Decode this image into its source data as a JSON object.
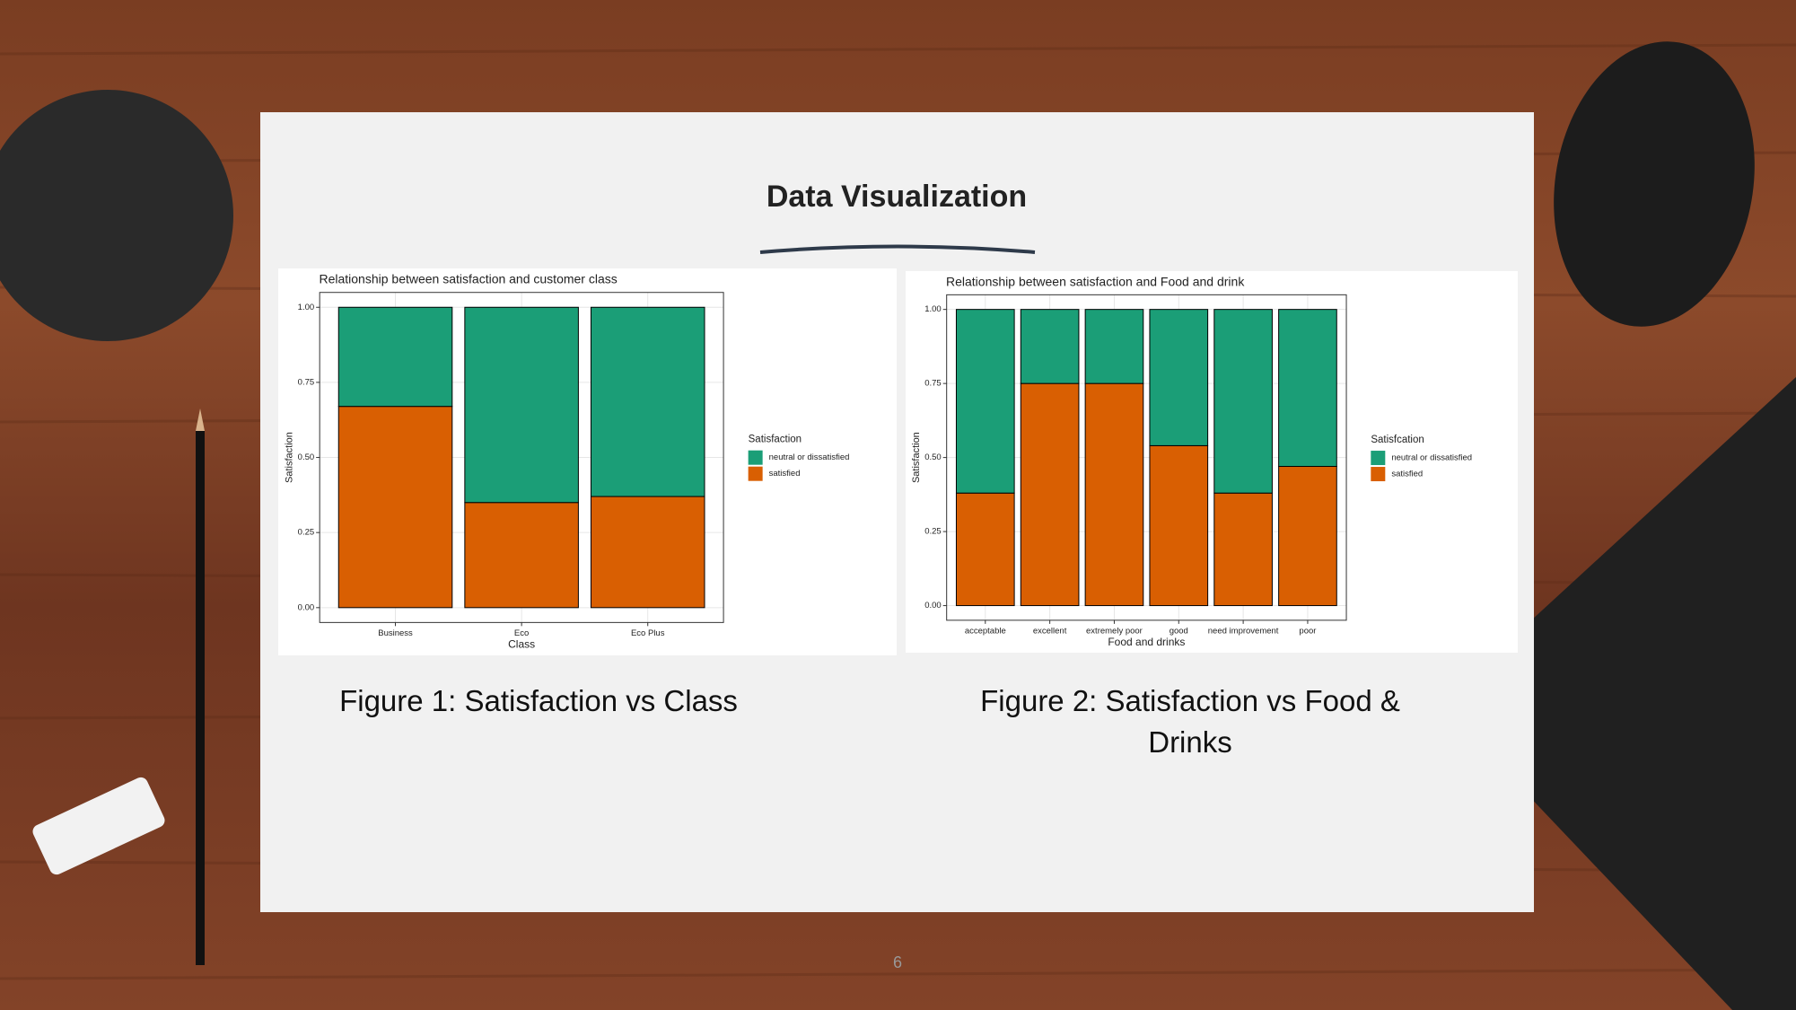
{
  "slide": {
    "title": "Data Visualization",
    "captions": [
      "Figure 1: Satisfaction vs Class",
      "Figure 2: Satisfaction vs Food & Drinks"
    ],
    "page_number": "6"
  },
  "chart_data": [
    {
      "type": "bar",
      "stacked": true,
      "title": "Relationship between satisfaction and customer class",
      "categories": [
        "Business",
        "Eco",
        "Eco Plus"
      ],
      "series": [
        {
          "name": "neutral or dissatisfied",
          "color": "#1b9e77",
          "values": [
            0.33,
            0.65,
            0.63
          ]
        },
        {
          "name": "satisfied",
          "color": "#d95f02",
          "values": [
            0.67,
            0.35,
            0.37
          ]
        }
      ],
      "x_label": "Class",
      "y_label": "Satisfaction",
      "legend_title": "Satisfaction",
      "ylim": [
        0,
        1
      ],
      "yticks": [
        {
          "value": 0,
          "label": "0.00"
        },
        {
          "value": 0.25,
          "label": "0.25"
        },
        {
          "value": 0.5,
          "label": "0.50"
        },
        {
          "value": 0.75,
          "label": "0.75"
        },
        {
          "value": 1,
          "label": "1.00"
        }
      ],
      "grid": true,
      "legend": "right"
    },
    {
      "type": "bar",
      "stacked": true,
      "title": "Relationship between satisfaction and Food and drink",
      "categories": [
        "acceptable",
        "excellent",
        "extremely poor",
        "good",
        "need improvement",
        "poor"
      ],
      "series": [
        {
          "name": "neutral or dissatisfied",
          "color": "#1b9e77",
          "values": [
            0.62,
            0.25,
            0.25,
            0.46,
            0.62,
            0.53
          ]
        },
        {
          "name": "satisfied",
          "color": "#d95f02",
          "values": [
            0.38,
            0.75,
            0.75,
            0.54,
            0.38,
            0.47
          ]
        }
      ],
      "x_label": "Food and drinks",
      "y_label": "Satisfaction",
      "legend_title": "Satisfcation",
      "ylim": [
        0,
        1
      ],
      "yticks": [
        {
          "value": 0,
          "label": "0.00"
        },
        {
          "value": 0.25,
          "label": "0.25"
        },
        {
          "value": 0.5,
          "label": "0.50"
        },
        {
          "value": 0.75,
          "label": "0.75"
        },
        {
          "value": 1,
          "label": "1.00"
        }
      ],
      "grid": true,
      "legend": "right"
    }
  ]
}
